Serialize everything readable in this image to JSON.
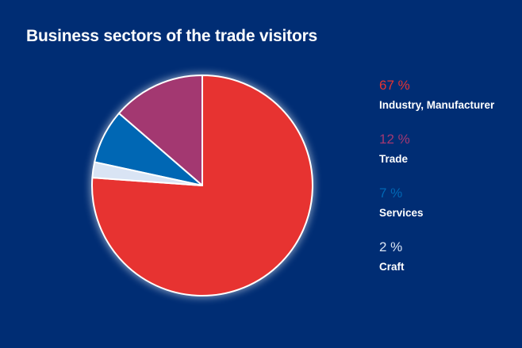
{
  "chart_data": {
    "type": "pie",
    "title": "Business sectors of the trade visitors",
    "slices": [
      {
        "label": "Industry, Manufacturer",
        "value": 67,
        "value_label": "67 %",
        "color": "#e73331"
      },
      {
        "label": "Trade",
        "value": 12,
        "value_label": "12 %",
        "color": "#a33871"
      },
      {
        "label": "Services",
        "value": 7,
        "value_label": "7 %",
        "color": "#0067b4"
      },
      {
        "label": "Craft",
        "value": 2,
        "value_label": "2 %",
        "color": "#d9e4f4"
      }
    ],
    "legend_position": "right"
  },
  "colors": {
    "background": "#002d74",
    "slice_border": "#ffffff"
  }
}
